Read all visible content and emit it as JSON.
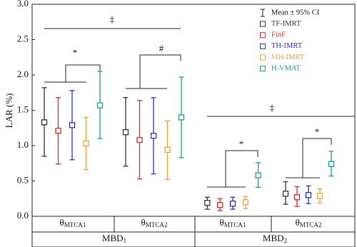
{
  "chart_data": {
    "type": "errorbar",
    "y_label": "LAR (%)",
    "ylim": [
      0,
      3
    ],
    "yticks": [
      {
        "value": 0,
        "label": "0.0"
      },
      0.5,
      {
        "value": 1,
        "label": "1.0"
      },
      1.5,
      {
        "value": 2,
        "label": "2.0"
      },
      2.5,
      {
        "value": 3,
        "label": "3.0"
      }
    ],
    "categories": [
      {
        "main": "θ",
        "sub": "MTCA1"
      },
      {
        "main": "θ",
        "sub": "MTCA2"
      },
      {
        "main": "θ",
        "sub": "MTCA1"
      },
      {
        "main": "θ",
        "sub": "MTCA2"
      }
    ],
    "groups": [
      {
        "main": "MBD",
        "sub": "1"
      },
      {
        "main": "MBD",
        "sub": "2"
      }
    ],
    "errorbar_label": "Mean ± 95% CI",
    "series": [
      {
        "name": "TF-IMRT",
        "color": "#333333",
        "values": [
          1.33,
          1.19,
          0.19,
          0.32
        ],
        "lower": [
          0.85,
          0.71,
          0.1,
          0.17
        ],
        "upper": [
          1.82,
          1.68,
          0.27,
          0.49
        ]
      },
      {
        "name": "FinF",
        "color": "#e8262a",
        "values": [
          1.21,
          1.08,
          0.16,
          0.27
        ],
        "lower": [
          0.74,
          0.53,
          0.08,
          0.14
        ],
        "upper": [
          1.68,
          1.64,
          0.25,
          0.42
        ]
      },
      {
        "name": "TH-IMRT",
        "color": "#2b2bd8",
        "values": [
          1.29,
          1.14,
          0.18,
          0.3
        ],
        "lower": [
          0.8,
          0.6,
          0.1,
          0.18
        ],
        "upper": [
          1.78,
          1.68,
          0.27,
          0.43
        ]
      },
      {
        "name": "MH-IMRT",
        "color": "#f4a13b",
        "values": [
          1.03,
          0.94,
          0.2,
          0.29
        ],
        "lower": [
          0.66,
          0.52,
          0.11,
          0.19
        ],
        "upper": [
          1.4,
          1.35,
          0.28,
          0.39
        ]
      },
      {
        "name": "H-VMAT",
        "color": "#1a9e8a",
        "values": [
          1.57,
          1.4,
          0.58,
          0.74
        ],
        "lower": [
          1.1,
          0.83,
          0.41,
          0.57
        ],
        "upper": [
          2.05,
          1.97,
          0.76,
          0.92
        ]
      }
    ],
    "annotations": [
      "‡",
      "*",
      "#",
      "‡",
      "*",
      "*"
    ]
  }
}
